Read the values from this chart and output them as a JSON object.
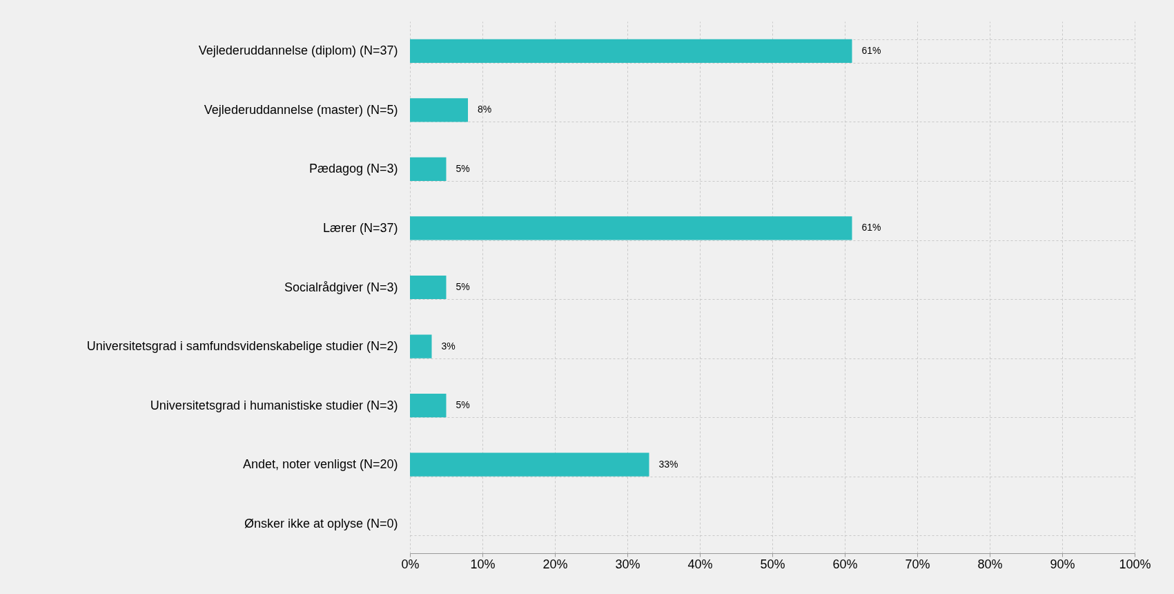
{
  "chart_data": {
    "type": "bar",
    "orientation": "horizontal",
    "categories": [
      "Vejlederuddannelse (diplom) (N=37)",
      "Vejlederuddannelse (master) (N=5)",
      "Pædagog (N=3)",
      "Lærer (N=37)",
      "Socialrådgiver (N=3)",
      "Universitetsgrad i samfundsvidenskabelige studier (N=2)",
      "Universitetsgrad i humanistiske studier (N=3)",
      "Andet, noter venligst (N=20)",
      "Ønsker ikke at oplyse (N=0)"
    ],
    "values": [
      61,
      8,
      5,
      61,
      5,
      3,
      5,
      33,
      0
    ],
    "value_labels": [
      "61%",
      "8%",
      "5%",
      "61%",
      "5%",
      "3%",
      "5%",
      "33%",
      null
    ],
    "color": "#2bbdbd",
    "xlim": [
      0,
      100
    ],
    "xticks": [
      {
        "value": 0,
        "label": "0%"
      },
      {
        "value": 10,
        "label": "10%"
      },
      {
        "value": 20,
        "label": "20%"
      },
      {
        "value": 30,
        "label": "30%"
      },
      {
        "value": 40,
        "label": "40%"
      },
      {
        "value": 50,
        "label": "50%"
      },
      {
        "value": 60,
        "label": "60%"
      },
      {
        "value": 70,
        "label": "70%"
      },
      {
        "value": 80,
        "label": "80%"
      },
      {
        "value": 90,
        "label": "90%"
      },
      {
        "value": 100,
        "label": "100%"
      }
    ],
    "grid": true
  }
}
